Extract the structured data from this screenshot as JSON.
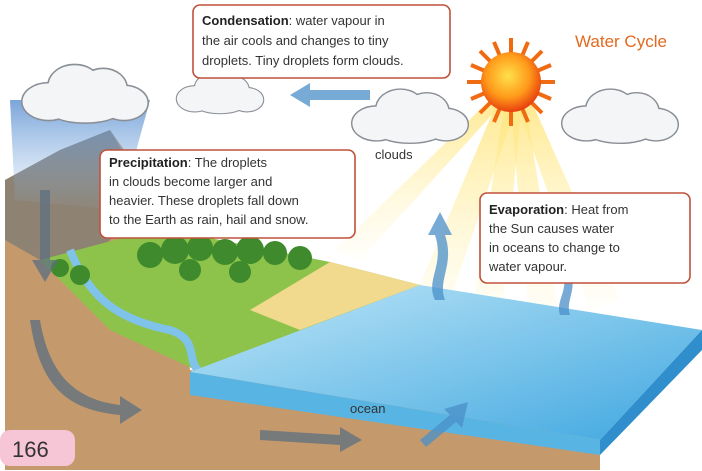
{
  "title": "Water Cycle",
  "condensation": {
    "term": "Condensation",
    "lines": [
      ": water vapour in",
      "the air cools and changes to tiny",
      "droplets. Tiny droplets form clouds."
    ]
  },
  "precipitation": {
    "term": "Precipitation",
    "lines": [
      ": The droplets",
      "in clouds become larger and",
      "heavier. These droplets fall down",
      "to the Earth as rain, hail and snow."
    ]
  },
  "evaporation": {
    "term": "Evaporation",
    "lines": [
      ": Heat from",
      "the Sun causes water",
      "in oceans to change to",
      "water vapour."
    ]
  },
  "labels": {
    "clouds": "clouds",
    "ocean": "ocean"
  },
  "page_number": "166"
}
